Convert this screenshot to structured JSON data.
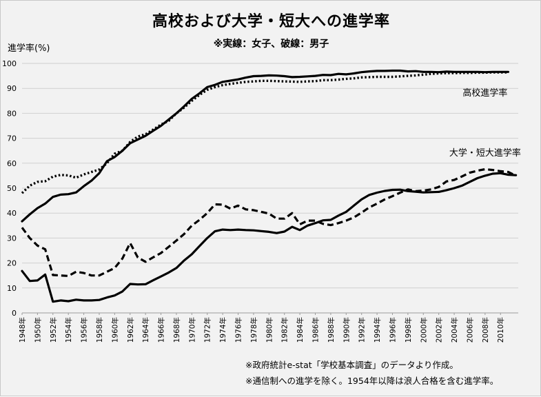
{
  "chart_data": {
    "type": "line",
    "title": "高校および大学・短大への進学率",
    "subtitle": "※実線：女子、破線：男子",
    "ylabel": "進学率(%)",
    "ylim": [
      0,
      100
    ],
    "yticks": [
      0,
      10,
      20,
      30,
      40,
      50,
      60,
      70,
      80,
      90,
      100
    ],
    "x_range": [
      1948,
      2011
    ],
    "xtick_labels": [
      "1948年",
      "1950年",
      "1952年",
      "1954年",
      "1956年",
      "1958年",
      "1960年",
      "1962年",
      "1964年",
      "1966年",
      "1968年",
      "1970年",
      "1972年",
      "1974年",
      "1976年",
      "1978年",
      "1980年",
      "1982年",
      "1984年",
      "1986年",
      "1988年",
      "1990年",
      "1992年",
      "1994年",
      "1996年",
      "1998年",
      "2000年",
      "2002年",
      "2004年",
      "2006年",
      "2008年",
      "2010年"
    ],
    "annotations": [
      {
        "text": "高校進学率",
        "x": 2008,
        "y": 87
      },
      {
        "text": "大学・短大進学率",
        "x": 2008,
        "y": 63
      }
    ],
    "series": [
      {
        "name": "高校進学率・女子",
        "style": "solid",
        "points": [
          [
            1948,
            36.7
          ],
          [
            1949,
            39.5
          ],
          [
            1950,
            42
          ],
          [
            1951,
            43.8
          ],
          [
            1952,
            46.5
          ],
          [
            1953,
            47.4
          ],
          [
            1954,
            47.6
          ],
          [
            1955,
            48.3
          ],
          [
            1956,
            50.8
          ],
          [
            1957,
            53
          ],
          [
            1958,
            56
          ],
          [
            1959,
            60.8
          ],
          [
            1960,
            62.5
          ],
          [
            1961,
            65
          ],
          [
            1962,
            68
          ],
          [
            1963,
            69.5
          ],
          [
            1964,
            71
          ],
          [
            1965,
            73
          ],
          [
            1966,
            75
          ],
          [
            1967,
            77.5
          ],
          [
            1968,
            80
          ],
          [
            1969,
            82.8
          ],
          [
            1970,
            85.8
          ],
          [
            1971,
            88
          ],
          [
            1972,
            90.5
          ],
          [
            1973,
            91.4
          ],
          [
            1974,
            92.6
          ],
          [
            1975,
            93.1
          ],
          [
            1976,
            93.6
          ],
          [
            1977,
            94.3
          ],
          [
            1978,
            94.9
          ],
          [
            1979,
            95
          ],
          [
            1980,
            95.2
          ],
          [
            1981,
            95.1
          ],
          [
            1982,
            94.9
          ],
          [
            1983,
            94.5
          ],
          [
            1984,
            94.6
          ],
          [
            1985,
            94.8
          ],
          [
            1986,
            95
          ],
          [
            1987,
            95.4
          ],
          [
            1988,
            95.3
          ],
          [
            1989,
            95.8
          ],
          [
            1990,
            95.6
          ],
          [
            1991,
            96
          ],
          [
            1992,
            96.5
          ],
          [
            1993,
            96.8
          ],
          [
            1994,
            97
          ],
          [
            1995,
            97
          ],
          [
            1996,
            97.1
          ],
          [
            1997,
            97.1
          ],
          [
            1998,
            96.8
          ],
          [
            1999,
            96.9
          ],
          [
            2000,
            96.6
          ],
          [
            2001,
            96.6
          ],
          [
            2002,
            96.5
          ],
          [
            2003,
            96.7
          ],
          [
            2004,
            96.6
          ],
          [
            2005,
            96.6
          ],
          [
            2006,
            96.6
          ],
          [
            2007,
            96.6
          ],
          [
            2008,
            96.5
          ],
          [
            2009,
            96.6
          ],
          [
            2010,
            96.6
          ],
          [
            2011,
            96.6
          ]
        ]
      },
      {
        "name": "高校進学率・男子",
        "style": "dotted",
        "points": [
          [
            1948,
            48
          ],
          [
            1949,
            51
          ],
          [
            1950,
            52.5
          ],
          [
            1951,
            52.8
          ],
          [
            1952,
            54.6
          ],
          [
            1953,
            55.3
          ],
          [
            1954,
            55.1
          ],
          [
            1955,
            54.2
          ],
          [
            1956,
            55.5
          ],
          [
            1957,
            56.5
          ],
          [
            1958,
            57.5
          ],
          [
            1959,
            60
          ],
          [
            1960,
            63.8
          ],
          [
            1961,
            65
          ],
          [
            1962,
            68.5
          ],
          [
            1963,
            70.7
          ],
          [
            1964,
            71.6
          ],
          [
            1965,
            73.5
          ],
          [
            1966,
            75.5
          ],
          [
            1967,
            77
          ],
          [
            1968,
            80
          ],
          [
            1969,
            82.3
          ],
          [
            1970,
            85
          ],
          [
            1971,
            87.4
          ],
          [
            1972,
            89.4
          ],
          [
            1973,
            90.5
          ],
          [
            1974,
            91.3
          ],
          [
            1975,
            91.8
          ],
          [
            1976,
            92.2
          ],
          [
            1977,
            92.6
          ],
          [
            1978,
            92.8
          ],
          [
            1979,
            93
          ],
          [
            1980,
            93
          ],
          [
            1981,
            92.9
          ],
          [
            1982,
            92.8
          ],
          [
            1983,
            92.7
          ],
          [
            1984,
            92.6
          ],
          [
            1985,
            92.8
          ],
          [
            1986,
            92.9
          ],
          [
            1987,
            93.3
          ],
          [
            1988,
            93.3
          ],
          [
            1989,
            93.5
          ],
          [
            1990,
            93.8
          ],
          [
            1991,
            94
          ],
          [
            1992,
            94.4
          ],
          [
            1993,
            94.5
          ],
          [
            1994,
            94.6
          ],
          [
            1995,
            94.6
          ],
          [
            1996,
            94.6
          ],
          [
            1997,
            94.8
          ],
          [
            1998,
            95
          ],
          [
            1999,
            95.2
          ],
          [
            2000,
            95.5
          ],
          [
            2001,
            95.8
          ],
          [
            2002,
            96
          ],
          [
            2003,
            96.1
          ],
          [
            2004,
            96.1
          ],
          [
            2005,
            96.2
          ],
          [
            2006,
            96.2
          ],
          [
            2007,
            96.3
          ],
          [
            2008,
            96.3
          ],
          [
            2009,
            96.4
          ],
          [
            2010,
            96.4
          ],
          [
            2011,
            96.4
          ]
        ]
      },
      {
        "name": "大学・短大進学率・女子",
        "style": "solid",
        "points": [
          [
            1948,
            16.8
          ],
          [
            1949,
            12.8
          ],
          [
            1950,
            13
          ],
          [
            1951,
            15.4
          ],
          [
            1952,
            4.5
          ],
          [
            1953,
            5
          ],
          [
            1954,
            4.7
          ],
          [
            1955,
            5.3
          ],
          [
            1956,
            5
          ],
          [
            1957,
            5
          ],
          [
            1958,
            5.2
          ],
          [
            1959,
            6.2
          ],
          [
            1960,
            7
          ],
          [
            1961,
            8.6
          ],
          [
            1962,
            11.6
          ],
          [
            1963,
            11.4
          ],
          [
            1964,
            11.5
          ],
          [
            1965,
            13.1
          ],
          [
            1966,
            14.6
          ],
          [
            1967,
            16.2
          ],
          [
            1968,
            18
          ],
          [
            1969,
            21
          ],
          [
            1970,
            23.5
          ],
          [
            1971,
            26.8
          ],
          [
            1972,
            30
          ],
          [
            1973,
            32.7
          ],
          [
            1974,
            33.4
          ],
          [
            1975,
            33.2
          ],
          [
            1976,
            33.4
          ],
          [
            1977,
            33.2
          ],
          [
            1978,
            33.1
          ],
          [
            1979,
            32.8
          ],
          [
            1980,
            32.5
          ],
          [
            1981,
            32
          ],
          [
            1982,
            32.6
          ],
          [
            1983,
            34.5
          ],
          [
            1984,
            33.2
          ],
          [
            1985,
            35
          ],
          [
            1986,
            36
          ],
          [
            1987,
            37.1
          ],
          [
            1988,
            37.3
          ],
          [
            1989,
            39
          ],
          [
            1990,
            40.5
          ],
          [
            1991,
            43
          ],
          [
            1992,
            45.5
          ],
          [
            1993,
            47.3
          ],
          [
            1994,
            48.2
          ],
          [
            1995,
            48.9
          ],
          [
            1996,
            49.3
          ],
          [
            1997,
            49.4
          ],
          [
            1998,
            48.8
          ],
          [
            1999,
            48.6
          ],
          [
            2000,
            48.3
          ],
          [
            2001,
            48.4
          ],
          [
            2002,
            48.5
          ],
          [
            2003,
            49.2
          ],
          [
            2004,
            50
          ],
          [
            2005,
            51
          ],
          [
            2006,
            52.5
          ],
          [
            2007,
            54
          ],
          [
            2008,
            55
          ],
          [
            2009,
            55.8
          ],
          [
            2010,
            56
          ],
          [
            2011,
            55.4
          ],
          [
            2012,
            55.2
          ]
        ]
      },
      {
        "name": "大学・短大進学率・男子",
        "style": "dashed",
        "points": [
          [
            1948,
            34.2
          ],
          [
            1949,
            30
          ],
          [
            1950,
            27
          ],
          [
            1951,
            25.5
          ],
          [
            1952,
            15.2
          ],
          [
            1953,
            15
          ],
          [
            1954,
            14.8
          ],
          [
            1955,
            16.5
          ],
          [
            1956,
            16
          ],
          [
            1957,
            15
          ],
          [
            1958,
            15
          ],
          [
            1959,
            16.5
          ],
          [
            1960,
            18
          ],
          [
            1961,
            21.8
          ],
          [
            1962,
            28
          ],
          [
            1963,
            22.2
          ],
          [
            1964,
            20.5
          ],
          [
            1965,
            22.3
          ],
          [
            1966,
            24
          ],
          [
            1967,
            26.5
          ],
          [
            1968,
            29
          ],
          [
            1969,
            31.6
          ],
          [
            1970,
            35
          ],
          [
            1971,
            37.3
          ],
          [
            1972,
            40
          ],
          [
            1973,
            43.5
          ],
          [
            1974,
            43.4
          ],
          [
            1975,
            41.8
          ],
          [
            1976,
            43
          ],
          [
            1977,
            41.5
          ],
          [
            1978,
            41.2
          ],
          [
            1979,
            40.5
          ],
          [
            1980,
            39.8
          ],
          [
            1981,
            37.8
          ],
          [
            1982,
            37.8
          ],
          [
            1983,
            40
          ],
          [
            1984,
            35.5
          ],
          [
            1985,
            37
          ],
          [
            1986,
            37
          ],
          [
            1987,
            35.7
          ],
          [
            1988,
            35.2
          ],
          [
            1989,
            36
          ],
          [
            1990,
            37
          ],
          [
            1991,
            38.3
          ],
          [
            1992,
            40.2
          ],
          [
            1993,
            42.3
          ],
          [
            1994,
            43.8
          ],
          [
            1995,
            45.5
          ],
          [
            1996,
            46.8
          ],
          [
            1997,
            48.2
          ],
          [
            1998,
            49.5
          ],
          [
            1999,
            48.8
          ],
          [
            2000,
            49
          ],
          [
            2001,
            49.5
          ],
          [
            2002,
            50.5
          ],
          [
            2003,
            52.7
          ],
          [
            2004,
            53.3
          ],
          [
            2005,
            54.7
          ],
          [
            2006,
            56.2
          ],
          [
            2007,
            57
          ],
          [
            2008,
            57.6
          ],
          [
            2009,
            57.3
          ],
          [
            2010,
            56.8
          ],
          [
            2011,
            56.5
          ],
          [
            2012,
            55
          ]
        ]
      }
    ]
  },
  "notes": {
    "source": "※政府統計e-stat「学校基本調査」のデータより作成。",
    "caveat": "※通信制への進学を除く。1954年以降は浪人合格を含む進学率。"
  }
}
